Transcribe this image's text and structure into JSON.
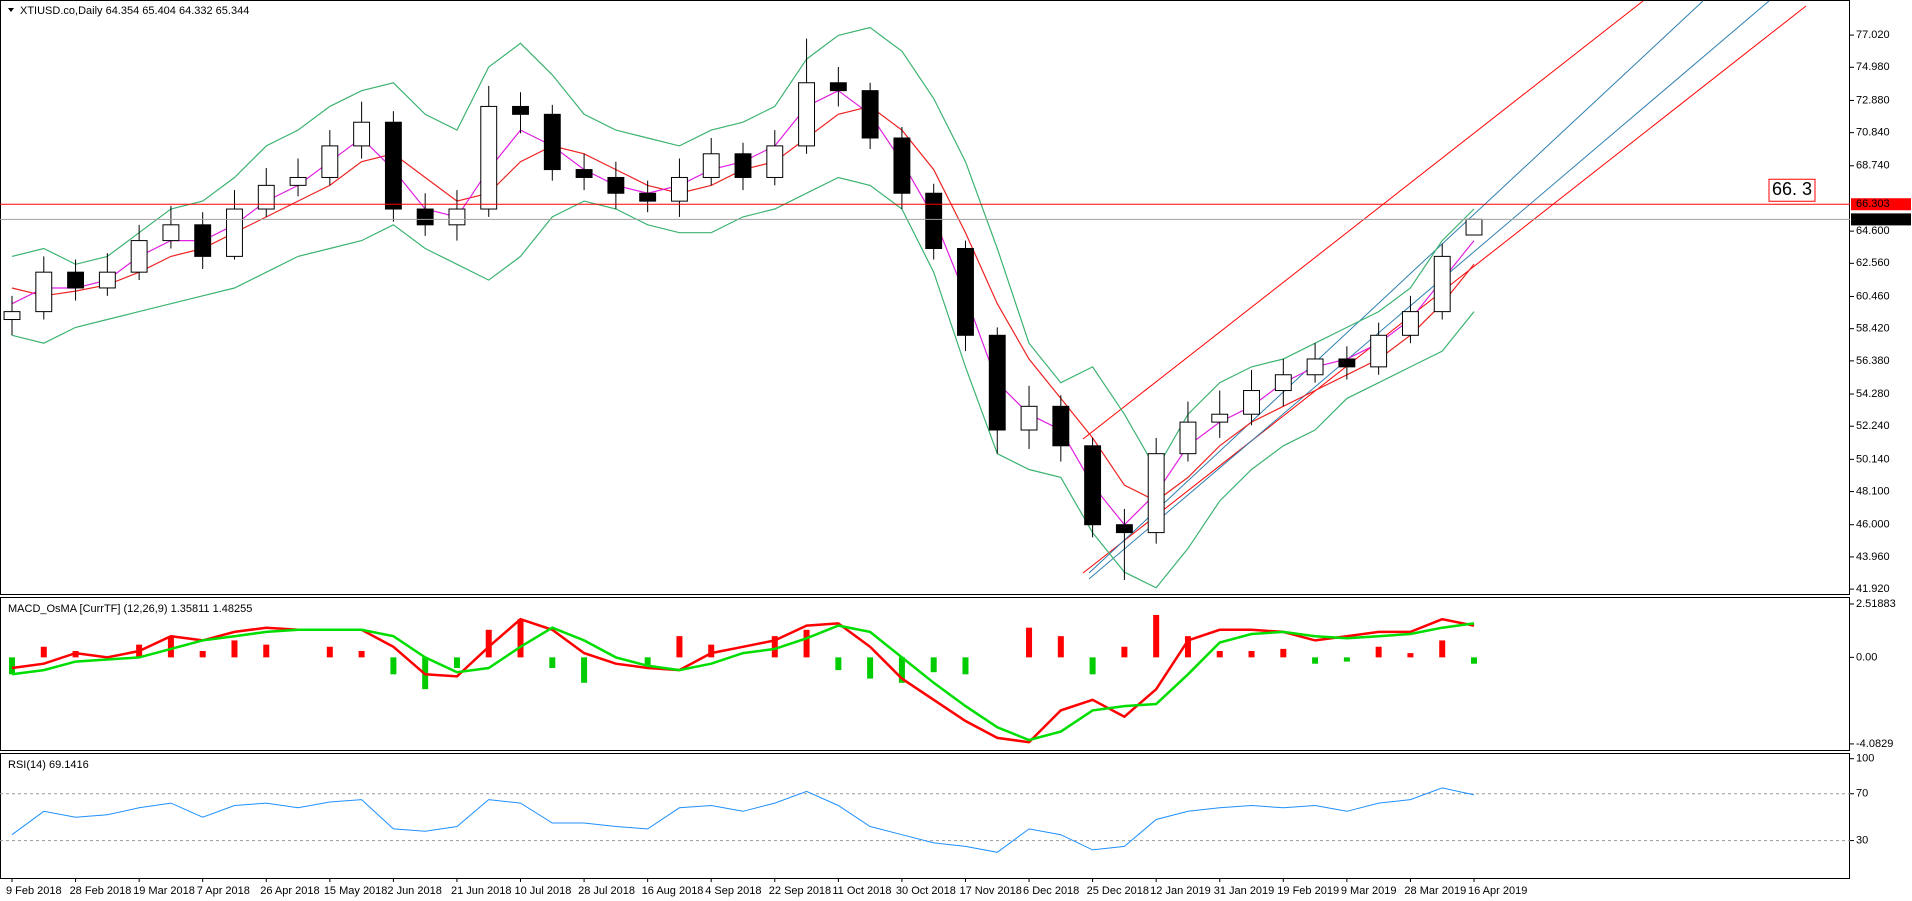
{
  "chart_data": [
    {
      "type": "candlestick",
      "title": "XTIUSD.co,Daily  64.354 65.404 64.332 65.344",
      "categories": [
        "9 Feb 2018",
        null,
        "28 Feb 2018",
        null,
        "19 Mar 2018",
        null,
        "7 Apr 2018",
        null,
        "26 Apr 2018",
        null,
        "15 May 2018",
        null,
        "2 Jun 2018",
        null,
        "21 Jun 2018",
        null,
        "10 Jul 2018",
        null,
        "28 Jul 2018",
        null,
        "16 Aug 2018",
        null,
        "4 Sep 2018",
        null,
        "22 Sep 2018",
        null,
        "11 Oct 2018",
        null,
        "30 Oct 2018",
        null,
        "17 Nov 2018",
        null,
        "6 Dec 2018",
        null,
        "25 Dec 2018",
        null,
        "12 Jan 2019",
        null,
        "31 Jan 2019",
        null,
        "19 Feb 2019",
        null,
        "9 Mar 2019",
        null,
        "28 Mar 2019",
        null,
        "16 Apr 2019"
      ],
      "open": [
        59.0,
        59.5,
        62.0,
        61.0,
        62.0,
        64.0,
        65.0,
        63.0,
        66.0,
        67.5,
        68.0,
        70.0,
        71.5,
        66.0,
        65.0,
        66.0,
        72.5,
        72.0,
        68.5,
        68.0,
        67.0,
        66.5,
        68.0,
        69.5,
        68.0,
        70.0,
        74.0,
        73.5,
        70.5,
        67.0,
        63.5,
        58.0,
        52.0,
        53.5,
        51.0,
        46.0,
        45.5,
        50.5,
        52.5,
        53.0,
        54.5,
        55.5,
        56.5,
        56.0,
        58.0,
        59.5,
        64.354
      ],
      "high": [
        60.5,
        63.0,
        62.8,
        63.2,
        65.0,
        66.2,
        65.8,
        67.2,
        68.6,
        69.2,
        71.0,
        72.8,
        72.2,
        67.0,
        67.2,
        73.8,
        73.4,
        72.6,
        69.5,
        69.0,
        67.8,
        69.2,
        70.5,
        70.2,
        71.0,
        76.8,
        75.0,
        74.0,
        71.2,
        67.6,
        64.0,
        58.5,
        54.8,
        54.2,
        51.5,
        47.0,
        51.5,
        53.8,
        54.5,
        55.8,
        56.5,
        57.5,
        57.3,
        58.8,
        60.5,
        63.8,
        65.404
      ],
      "low": [
        58.0,
        59.0,
        60.2,
        60.5,
        61.5,
        63.5,
        62.2,
        62.8,
        65.5,
        66.8,
        67.5,
        69.2,
        65.2,
        64.3,
        64.0,
        65.5,
        70.8,
        67.8,
        67.2,
        66.0,
        65.8,
        65.5,
        67.5,
        67.2,
        67.5,
        69.5,
        72.5,
        69.8,
        66.0,
        62.8,
        57.0,
        50.5,
        50.8,
        50.0,
        45.2,
        42.5,
        44.8,
        50.0,
        51.5,
        52.3,
        53.5,
        55.0,
        55.2,
        55.5,
        57.5,
        59.0,
        64.332
      ],
      "close": [
        59.5,
        62.0,
        61.0,
        62.0,
        64.0,
        65.0,
        63.0,
        66.0,
        67.5,
        68.0,
        70.0,
        71.5,
        66.0,
        65.0,
        66.0,
        72.5,
        72.0,
        68.5,
        68.0,
        67.0,
        66.5,
        68.0,
        69.5,
        68.0,
        70.0,
        74.0,
        73.5,
        70.5,
        67.0,
        63.5,
        58.0,
        52.0,
        53.5,
        51.0,
        46.0,
        45.5,
        50.5,
        52.5,
        53.0,
        54.5,
        55.5,
        56.5,
        56.0,
        58.0,
        59.5,
        63.0,
        65.344
      ],
      "up_color": "#ffffff",
      "down_color": "#000000",
      "overlays": [
        {
          "color": "#3cb371",
          "values": [
            63,
            63.5,
            62.5,
            63,
            64.5,
            66,
            66.5,
            68,
            70,
            71,
            72.5,
            73.5,
            74,
            72,
            71,
            75,
            76.5,
            74.5,
            72,
            71,
            70.5,
            70,
            71,
            71.5,
            72.5,
            75.5,
            77,
            77.5,
            76,
            73,
            69,
            63.5,
            57.5,
            55,
            56,
            53,
            49.5,
            53,
            55,
            56,
            56.5,
            57.5,
            58.5,
            59.5,
            61,
            64,
            66
          ]
        },
        {
          "color": "#3cb371",
          "values": [
            58,
            57.5,
            58.5,
            59,
            59.5,
            60,
            60.5,
            61,
            62,
            63,
            63.5,
            64,
            65,
            63.5,
            62.5,
            61.5,
            63,
            65.5,
            66.5,
            66,
            65,
            64.5,
            64.5,
            65.5,
            66,
            67,
            68,
            67.5,
            66,
            62,
            56,
            50.5,
            49.5,
            49,
            45.5,
            43,
            42,
            44.5,
            47.5,
            49.5,
            51,
            52,
            54,
            55,
            56,
            57,
            59.5
          ]
        },
        {
          "color": "#ee2222",
          "values": [
            61,
            60.5,
            60.8,
            61.2,
            62,
            63,
            63.5,
            64.5,
            65.5,
            66.5,
            67.5,
            69,
            69.5,
            68,
            66.5,
            67,
            69,
            70,
            69.5,
            68.5,
            67.5,
            67,
            67.5,
            68.5,
            69,
            70.5,
            72,
            72.5,
            71,
            68.5,
            64.5,
            60,
            56.5,
            54,
            51.5,
            48.5,
            47.5,
            49,
            51,
            52.5,
            53.5,
            54.5,
            55.5,
            56.5,
            58,
            60,
            62.5
          ]
        },
        {
          "color": "#e020e0",
          "values": [
            60,
            61,
            61,
            61.5,
            63,
            64,
            64,
            65,
            66.5,
            67.5,
            69,
            70.5,
            68.5,
            66,
            65.5,
            68.5,
            71,
            70,
            68.5,
            67.5,
            67,
            67.5,
            68.5,
            69,
            70,
            72.5,
            73.5,
            72,
            69,
            65.5,
            60.5,
            55,
            53,
            52,
            48.5,
            46,
            48,
            51,
            52.5,
            53.5,
            55,
            56,
            56.5,
            57.5,
            59,
            61.5,
            64
          ]
        }
      ],
      "hlines": [
        {
          "value": 66.303,
          "label": "66.303",
          "color": "#ff0000"
        },
        {
          "value": 65.344,
          "label": "65.344",
          "color": "#000000"
        }
      ],
      "annotation": "66. 3",
      "ylim": [
        41.61,
        79.18
      ],
      "yticks": [
        {
          "value": 77.02,
          "label": "77.020"
        },
        {
          "value": 74.98,
          "label": "74.980"
        },
        {
          "value": 72.88,
          "label": "72.880"
        },
        {
          "value": 70.84,
          "label": "70.840"
        },
        {
          "value": 68.74,
          "label": "68.740"
        },
        {
          "value": 64.6,
          "label": "64.600"
        },
        {
          "value": 62.56,
          "label": "62.560"
        },
        {
          "value": 60.46,
          "label": "60.460"
        },
        {
          "value": 58.42,
          "label": "58.420"
        },
        {
          "value": 56.38,
          "label": "56.380"
        },
        {
          "value": 54.28,
          "label": "54.280"
        },
        {
          "value": 52.24,
          "label": "52.240"
        },
        {
          "value": 50.14,
          "label": "50.140"
        },
        {
          "value": 48.1,
          "label": "48.100"
        },
        {
          "value": 46.0,
          "label": "46.000"
        },
        {
          "value": 43.96,
          "label": "43.960"
        },
        {
          "value": 41.92,
          "label": "41.920"
        }
      ]
    },
    {
      "type": "macd",
      "title": "MACD_OsMA [CurrTF] (12,26,9) 1.35811 1.48255",
      "histogram": {
        "up_color": "#ff0000",
        "down_color": "#00cc00",
        "values": [
          -0.8,
          0.5,
          0.3,
          0.0,
          0.6,
          1.0,
          0.3,
          0.8,
          0.6,
          0.0,
          0.5,
          0.3,
          -0.8,
          -1.5,
          -0.5,
          1.3,
          1.8,
          -0.5,
          -1.2,
          0.0,
          -0.5,
          1.0,
          0.6,
          0.0,
          1.0,
          1.3,
          -0.6,
          -1.0,
          -1.2,
          -0.7,
          -0.8,
          0.0,
          1.4,
          1.0,
          -0.8,
          0.5,
          2.0,
          1.0,
          0.3,
          0.3,
          0.4,
          -0.3,
          -0.2,
          0.5,
          0.2,
          0.8,
          -0.3
        ]
      },
      "series": [
        {
          "color": "#ff0000",
          "values": [
            -0.5,
            -0.3,
            0.2,
            0.0,
            0.3,
            1.0,
            0.8,
            1.2,
            1.4,
            1.3,
            1.3,
            1.3,
            0.5,
            -0.8,
            -0.9,
            0.5,
            1.8,
            1.3,
            0.2,
            -0.3,
            -0.5,
            -0.6,
            0.2,
            0.5,
            0.8,
            1.5,
            1.6,
            0.5,
            -1.0,
            -2.0,
            -3.0,
            -3.8,
            -4.0,
            -2.5,
            -2.0,
            -2.8,
            -1.5,
            0.8,
            1.3,
            1.3,
            1.2,
            0.8,
            1.0,
            1.2,
            1.2,
            1.8,
            1.5
          ]
        },
        {
          "color": "#00dd00",
          "values": [
            -0.8,
            -0.6,
            -0.2,
            -0.1,
            0.0,
            0.4,
            0.8,
            1.0,
            1.2,
            1.3,
            1.3,
            1.3,
            1.0,
            0.0,
            -0.7,
            -0.5,
            0.5,
            1.4,
            0.8,
            0.0,
            -0.4,
            -0.6,
            -0.3,
            0.2,
            0.4,
            0.9,
            1.5,
            1.2,
            0.0,
            -1.2,
            -2.3,
            -3.3,
            -3.9,
            -3.5,
            -2.5,
            -2.3,
            -2.2,
            -0.8,
            0.7,
            1.1,
            1.2,
            1.0,
            0.9,
            1.0,
            1.1,
            1.4,
            1.6
          ]
        }
      ],
      "ylim": [
        -4.37,
        2.8
      ],
      "yticks": [
        2.51883,
        {
          "value": 0,
          "label": "0.00"
        },
        -4.0829
      ]
    },
    {
      "type": "line",
      "title": "RSI(14) 69.1416",
      "series": [
        {
          "color": "#1e90ff",
          "values": [
            35,
            55,
            50,
            52,
            58,
            62,
            50,
            60,
            62,
            58,
            63,
            65,
            40,
            38,
            42,
            65,
            62,
            45,
            45,
            42,
            40,
            58,
            60,
            55,
            62,
            72,
            60,
            42,
            35,
            28,
            25,
            20,
            40,
            35,
            22,
            25,
            48,
            55,
            58,
            60,
            58,
            60,
            55,
            62,
            65,
            75,
            69
          ]
        }
      ],
      "levels": [
        70,
        30
      ],
      "ylim": [
        -2,
        104
      ],
      "yticks": [
        100,
        70,
        30
      ]
    }
  ]
}
